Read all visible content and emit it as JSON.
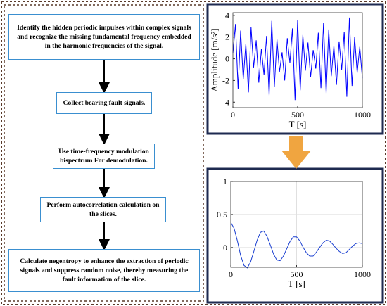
{
  "flow": {
    "steps": [
      {
        "lines": [
          "Identify the hidden periodic impulses within complex signals",
          "and recognize the missing fundamental frequency embedded",
          "in the harmonic  frequencies of the signal."
        ]
      },
      {
        "lines": [
          "Collect bearing fault signals."
        ]
      },
      {
        "lines": [
          "Use time-frequency modulation",
          "bispectrum For demodulation."
        ]
      },
      {
        "lines": [
          "Perform autocorrelation calculation on",
          "the slices."
        ]
      },
      {
        "lines": [
          "Calculate negentropy to enhance the extraction of periodic",
          "signals and suppress random noise, thereby measuring the",
          "fault information of the slice."
        ]
      }
    ]
  },
  "charts": [
    {
      "type": "line",
      "xlabel": "T [s]",
      "ylabel": "Amplitude [m/s²]",
      "color": "#0000ff",
      "grid": false,
      "xlim": [
        0,
        1000
      ],
      "ylim": [
        -4.5,
        4.25
      ],
      "xticks": [
        0,
        500,
        1000
      ],
      "yticks": [
        -4,
        -2,
        0,
        2,
        4
      ],
      "x": [
        0,
        20,
        40,
        60,
        80,
        100,
        120,
        140,
        160,
        180,
        200,
        220,
        240,
        260,
        280,
        300,
        320,
        340,
        360,
        380,
        400,
        420,
        440,
        460,
        480,
        500,
        520,
        540,
        560,
        580,
        600,
        620,
        640,
        660,
        680,
        700,
        720,
        740,
        760,
        780,
        800,
        820,
        840,
        860,
        880,
        900,
        920,
        940,
        960,
        980,
        1000
      ],
      "values": [
        0.5,
        3.2,
        -2.8,
        2.6,
        -1.9,
        1.4,
        -3.1,
        2.9,
        -0.8,
        1.7,
        -2.2,
        0.9,
        -1.5,
        2.1,
        -3.4,
        3.5,
        -2.6,
        1.8,
        -1.2,
        0.6,
        -2.0,
        1.9,
        -0.4,
        2.8,
        -3.8,
        3.6,
        -2.9,
        2.2,
        -1.1,
        1.5,
        -1.7,
        0.8,
        -0.9,
        2.4,
        -2.7,
        3.3,
        -3.2,
        2.7,
        -1.6,
        1.2,
        -2.4,
        1.6,
        -1.0,
        2.5,
        -3.5,
        3.8,
        -2.5,
        2.0,
        -1.3,
        1.1,
        -1.8
      ]
    },
    {
      "type": "line",
      "xlabel": "T [s]",
      "color": "#1a3fd0",
      "grid": true,
      "xlim": [
        0,
        1000
      ],
      "ylim": [
        -0.3,
        1
      ],
      "xticks": [
        0,
        500,
        1000
      ],
      "yticks": [
        0,
        0.5,
        1
      ],
      "x": [
        0,
        25,
        50,
        75,
        100,
        125,
        150,
        175,
        200,
        225,
        250,
        275,
        300,
        325,
        350,
        375,
        400,
        425,
        450,
        475,
        500,
        525,
        550,
        575,
        600,
        625,
        650,
        675,
        700,
        725,
        750,
        775,
        800,
        825,
        850,
        875,
        900,
        925,
        950,
        975,
        1000
      ],
      "values": [
        0.38,
        0.29,
        0.1,
        -0.12,
        -0.27,
        -0.31,
        -0.22,
        -0.06,
        0.11,
        0.23,
        0.25,
        0.17,
        0.04,
        -0.1,
        -0.19,
        -0.2,
        -0.13,
        -0.02,
        0.09,
        0.16,
        0.16,
        0.1,
        0.0,
        -0.08,
        -0.13,
        -0.13,
        -0.07,
        0.0,
        0.07,
        0.11,
        0.1,
        0.05,
        -0.01,
        -0.06,
        -0.09,
        -0.08,
        -0.03,
        0.02,
        0.06,
        0.07,
        0.06
      ]
    }
  ]
}
